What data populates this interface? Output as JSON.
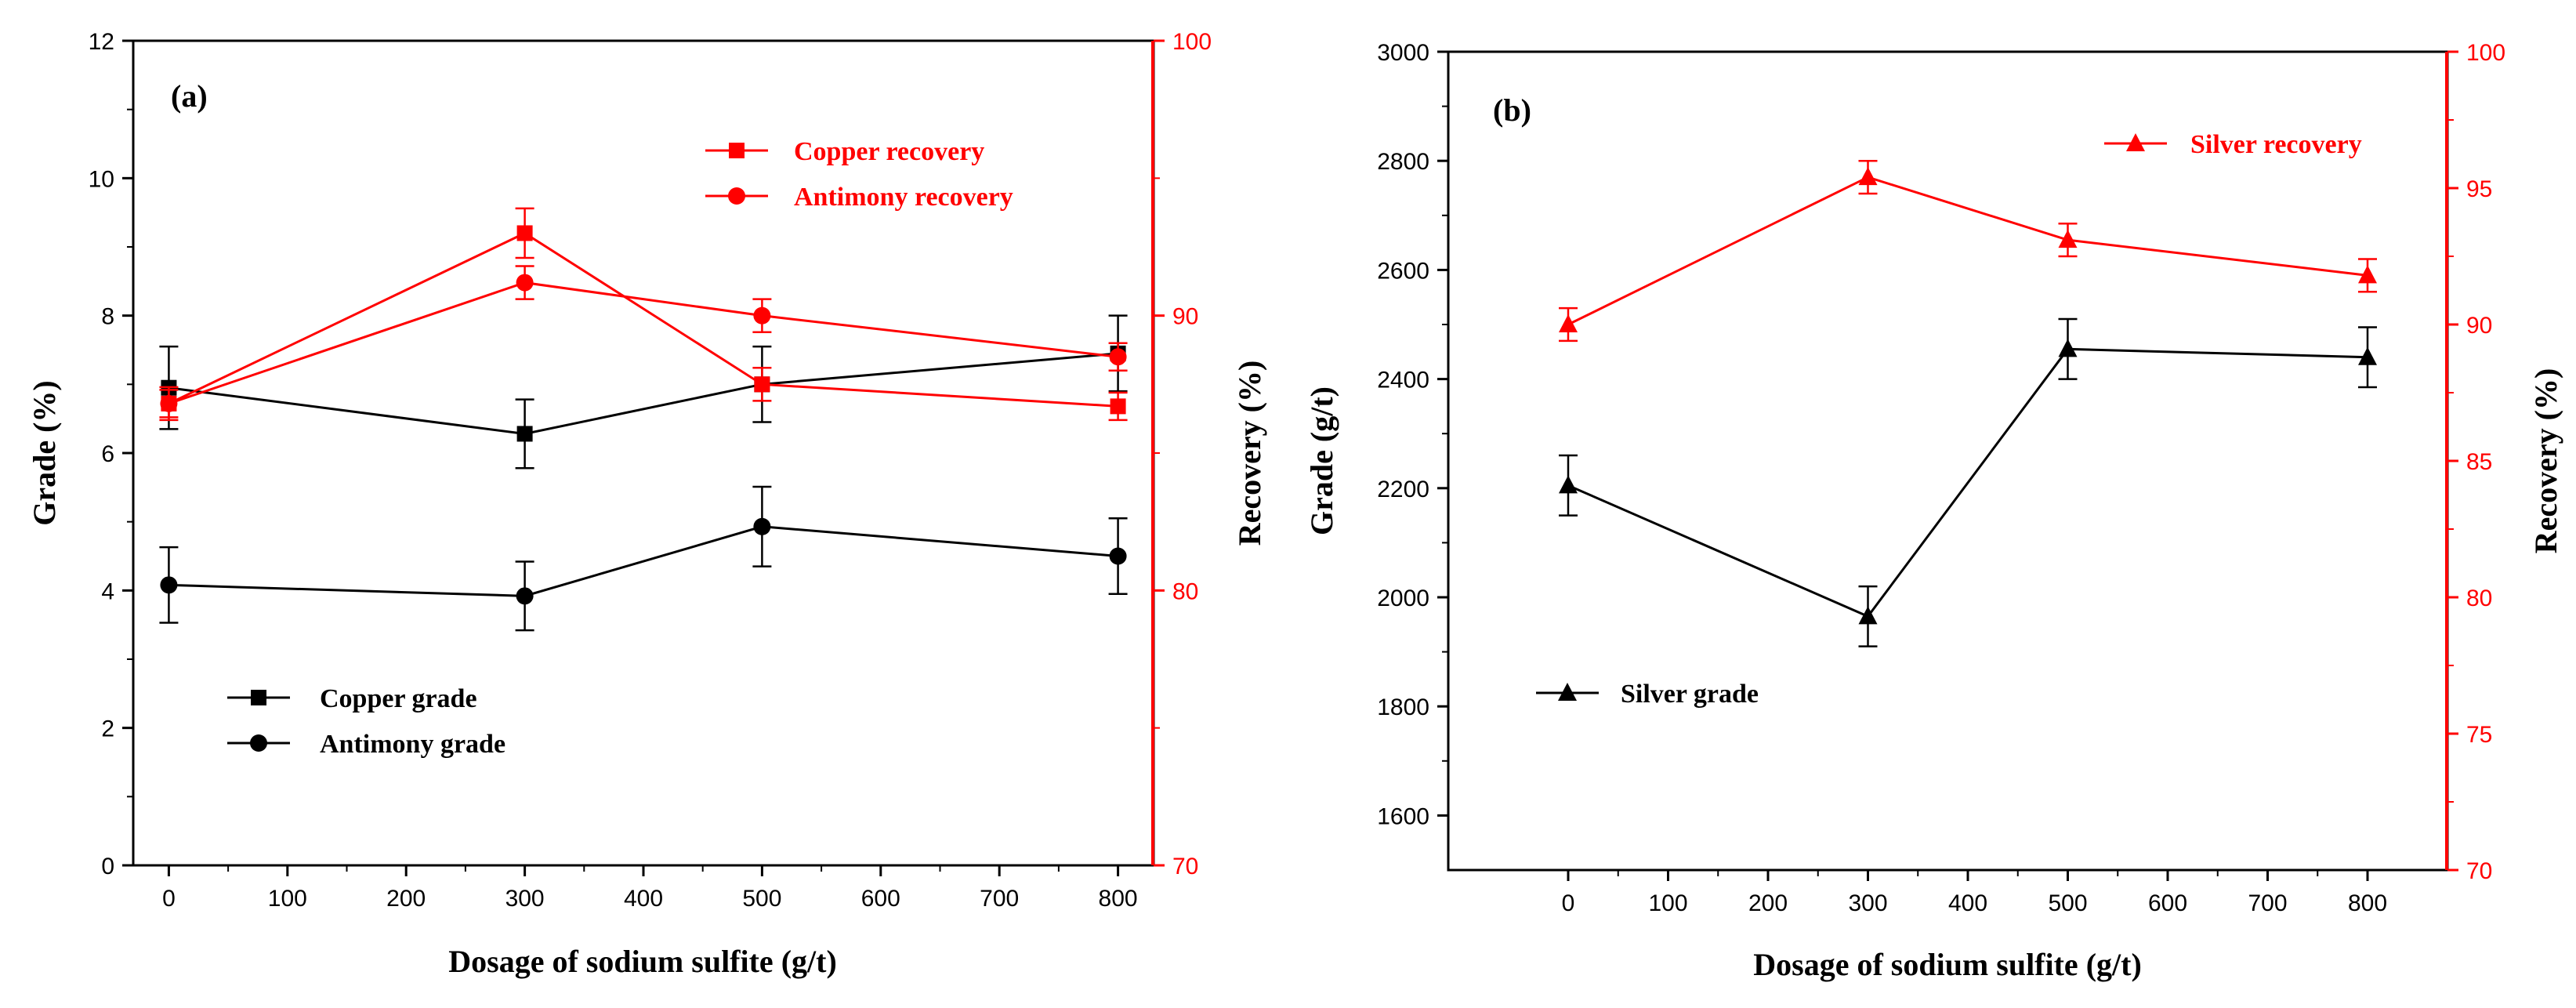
{
  "chart_data": [
    {
      "type": "line",
      "panel_label": "(a)",
      "xlabel": "Dosage of sodium sulfite (g/t)",
      "ylabel": "Grade (%)",
      "y2label": "Recovery (%)",
      "xlim": [
        -30,
        830
      ],
      "ylim": [
        0,
        12
      ],
      "y2lim": [
        70,
        100
      ],
      "x_ticks": [
        0,
        100,
        200,
        300,
        400,
        500,
        600,
        700,
        800
      ],
      "y_ticks": [
        0,
        2,
        4,
        6,
        8,
        10,
        12
      ],
      "y2_ticks": [
        70,
        80,
        90,
        100
      ],
      "x": [
        0,
        300,
        500,
        800
      ],
      "series": [
        {
          "name": "Copper grade",
          "axis": "left",
          "marker": "square",
          "color": "#000000",
          "values": [
            6.95,
            6.28,
            7.0,
            7.45
          ],
          "errors": [
            0.6,
            0.5,
            0.55,
            0.55
          ]
        },
        {
          "name": "Antimony grade",
          "axis": "left",
          "marker": "circle",
          "color": "#000000",
          "values": [
            4.08,
            3.92,
            4.93,
            4.5
          ],
          "errors": [
            0.55,
            0.5,
            0.58,
            0.55
          ]
        },
        {
          "name": "Copper recovery",
          "axis": "right",
          "marker": "square",
          "color": "#ff0000",
          "values": [
            86.8,
            93.0,
            87.5,
            86.7
          ],
          "errors": [
            0.6,
            0.9,
            0.6,
            0.5
          ]
        },
        {
          "name": "Antimony recovery",
          "axis": "right",
          "marker": "circle",
          "color": "#ff0000",
          "values": [
            86.8,
            91.2,
            90.0,
            88.5
          ],
          "errors": [
            0.5,
            0.6,
            0.6,
            0.5
          ]
        }
      ],
      "legends": [
        {
          "position": "top-right",
          "entries": [
            "Copper recovery",
            "Antimony recovery"
          ]
        },
        {
          "position": "bottom-left",
          "entries": [
            "Copper grade",
            "Antimony grade"
          ]
        }
      ]
    },
    {
      "type": "line",
      "panel_label": "(b)",
      "xlabel": "Dosage of sodium sulfite (g/t)",
      "ylabel": "Grade (g/t)",
      "y2label": "Recovery (%)",
      "xlim": [
        -120,
        880
      ],
      "ylim": [
        1500,
        3000
      ],
      "y2lim": [
        70,
        100
      ],
      "x_ticks": [
        0,
        100,
        200,
        300,
        400,
        500,
        600,
        700,
        800
      ],
      "y_ticks": [
        1600,
        1800,
        2000,
        2200,
        2400,
        2600,
        2800,
        3000
      ],
      "y2_ticks": [
        70,
        75,
        80,
        85,
        90,
        95,
        100
      ],
      "x": [
        0,
        300,
        500,
        800
      ],
      "series": [
        {
          "name": "Silver grade",
          "axis": "left",
          "marker": "triangle",
          "color": "#000000",
          "values": [
            2205,
            1965,
            2455,
            2440
          ],
          "errors": [
            55,
            55,
            55,
            55
          ]
        },
        {
          "name": "Silver recovery",
          "axis": "right",
          "marker": "triangle",
          "color": "#ff0000",
          "values": [
            90.0,
            95.4,
            93.1,
            91.8
          ],
          "errors": [
            0.6,
            0.6,
            0.6,
            0.6
          ]
        }
      ],
      "legends": [
        {
          "position": "top-right",
          "entries": [
            "Silver recovery"
          ]
        },
        {
          "position": "bottom-left",
          "entries": [
            "Silver grade"
          ]
        }
      ]
    }
  ]
}
